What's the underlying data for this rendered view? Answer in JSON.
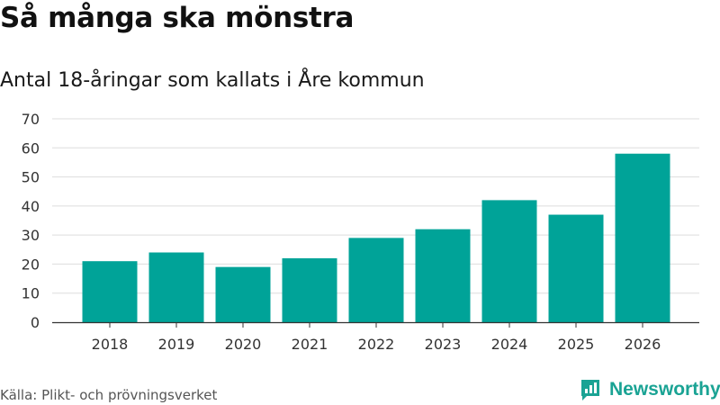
{
  "header": {
    "title": "Så många ska mönstra",
    "subtitle": "Antal 18-åringar som kallats i Åre kommun"
  },
  "footer": {
    "source": "Källa: Plikt- och prövningsverket",
    "brand": "Newsworthy"
  },
  "colors": {
    "bar": "#00a398",
    "grid": "#dddddd",
    "axis": "#333333",
    "brand": "#1aa394"
  },
  "chart_data": {
    "type": "bar",
    "title": "Så många ska mönstra",
    "subtitle": "Antal 18-åringar som kallats i Åre kommun",
    "categories": [
      "2018",
      "2019",
      "2020",
      "2021",
      "2022",
      "2023",
      "2024",
      "2025",
      "2026"
    ],
    "values": [
      21,
      24,
      19,
      22,
      29,
      32,
      42,
      37,
      58
    ],
    "yticks": [
      0,
      10,
      20,
      30,
      40,
      50,
      60,
      70
    ],
    "ylim": [
      0,
      70
    ],
    "xlabel": "",
    "ylabel": "",
    "grid": true,
    "legend": "none"
  }
}
